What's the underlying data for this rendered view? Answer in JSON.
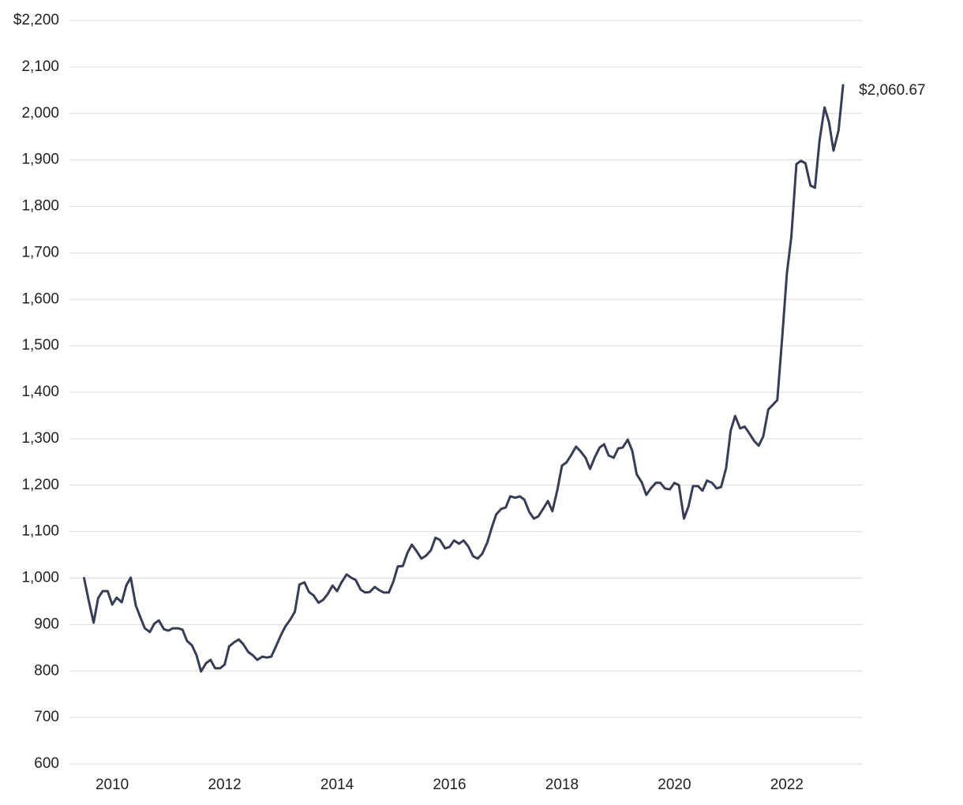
{
  "chart_data": {
    "type": "line",
    "x": [
      2009.5,
      2009.58,
      2009.67,
      2009.75,
      2009.83,
      2009.92,
      2010,
      2010.08,
      2010.17,
      2010.25,
      2010.33,
      2010.42,
      2010.5,
      2010.58,
      2010.67,
      2010.75,
      2010.83,
      2010.92,
      2011,
      2011.08,
      2011.17,
      2011.25,
      2011.33,
      2011.42,
      2011.5,
      2011.58,
      2011.67,
      2011.75,
      2011.83,
      2011.92,
      2012,
      2012.08,
      2012.17,
      2012.25,
      2012.33,
      2012.42,
      2012.5,
      2012.58,
      2012.67,
      2012.75,
      2012.83,
      2012.92,
      2013,
      2013.08,
      2013.17,
      2013.25,
      2013.33,
      2013.42,
      2013.5,
      2013.58,
      2013.67,
      2013.75,
      2013.83,
      2013.92,
      2014,
      2014.08,
      2014.17,
      2014.25,
      2014.33,
      2014.42,
      2014.5,
      2014.58,
      2014.67,
      2014.75,
      2014.83,
      2014.92,
      2015,
      2015.08,
      2015.17,
      2015.25,
      2015.33,
      2015.42,
      2015.5,
      2015.58,
      2015.67,
      2015.75,
      2015.83,
      2015.92,
      2016,
      2016.08,
      2016.17,
      2016.25,
      2016.33,
      2016.42,
      2016.5,
      2016.58,
      2016.67,
      2016.75,
      2016.83,
      2016.92,
      2017,
      2017.08,
      2017.17,
      2017.25,
      2017.33,
      2017.42,
      2017.5,
      2017.58,
      2017.67,
      2017.75,
      2017.83,
      2017.92,
      2018,
      2018.08,
      2018.17,
      2018.25,
      2018.33,
      2018.42,
      2018.5,
      2018.58,
      2018.67,
      2018.75,
      2018.83,
      2018.92,
      2019,
      2019.08,
      2019.17,
      2019.25,
      2019.33,
      2019.42,
      2019.5,
      2019.58,
      2019.67,
      2019.75,
      2019.83,
      2019.92,
      2020,
      2020.08,
      2020.17,
      2020.25,
      2020.33,
      2020.42,
      2020.5,
      2020.58,
      2020.67,
      2020.75,
      2020.83,
      2020.92,
      2021,
      2021.08,
      2021.17,
      2021.25,
      2021.33,
      2021.42,
      2021.5,
      2021.58,
      2021.67,
      2021.75,
      2021.83,
      2021.92,
      2022,
      2022.08,
      2022.17,
      2022.25,
      2022.33,
      2022.42,
      2022.5,
      2022.58,
      2022.67,
      2022.75,
      2022.83,
      2022.92,
      2023
    ],
    "values": [
      1000,
      953,
      904,
      957,
      972,
      972,
      943,
      958,
      948,
      984,
      1001,
      941,
      916,
      892,
      884,
      902,
      909,
      890,
      887,
      892,
      892,
      889,
      865,
      855,
      834,
      799,
      817,
      824,
      806,
      806,
      814,
      853,
      862,
      868,
      858,
      841,
      834,
      824,
      831,
      829,
      831,
      855,
      877,
      896,
      911,
      928,
      986,
      991,
      970,
      963,
      947,
      953,
      965,
      984,
      972,
      991,
      1008,
      1001,
      996,
      975,
      969,
      970,
      981,
      974,
      969,
      969,
      992,
      1025,
      1026,
      1054,
      1072,
      1057,
      1042,
      1048,
      1060,
      1087,
      1082,
      1064,
      1067,
      1081,
      1074,
      1081,
      1069,
      1047,
      1042,
      1052,
      1076,
      1108,
      1137,
      1149,
      1152,
      1176,
      1173,
      1176,
      1169,
      1142,
      1128,
      1133,
      1150,
      1166,
      1144,
      1191,
      1242,
      1249,
      1266,
      1283,
      1273,
      1259,
      1235,
      1259,
      1281,
      1288,
      1264,
      1259,
      1279,
      1281,
      1298,
      1274,
      1223,
      1206,
      1179,
      1193,
      1205,
      1205,
      1193,
      1191,
      1205,
      1200,
      1128,
      1154,
      1198,
      1198,
      1188,
      1210,
      1205,
      1193,
      1196,
      1237,
      1317,
      1349,
      1322,
      1326,
      1312,
      1295,
      1285,
      1305,
      1363,
      1373,
      1383,
      1522,
      1655,
      1735,
      1891,
      1898,
      1893,
      1845,
      1840,
      1940,
      2013,
      1981,
      1920,
      1964,
      2060.67
    ],
    "value_labels": [
      null,
      null,
      null,
      null,
      null,
      null,
      null,
      null,
      null,
      null,
      null,
      null,
      null,
      null,
      null,
      null,
      null,
      null,
      null,
      null,
      null,
      null,
      null,
      null,
      null,
      null,
      null,
      null,
      null,
      null,
      null,
      null,
      null,
      null,
      null,
      null,
      null,
      null,
      null,
      null,
      null,
      null,
      null,
      null,
      null,
      null,
      null,
      null,
      null,
      null,
      null,
      null,
      null,
      null,
      null,
      null,
      null,
      null,
      null,
      null,
      null,
      null,
      null,
      null,
      null,
      null,
      null,
      null,
      null,
      null,
      null,
      null,
      null,
      null,
      null,
      null,
      null,
      null,
      null,
      null,
      null,
      null,
      null,
      null,
      null,
      null,
      null,
      null,
      null,
      null,
      null,
      null,
      null,
      null,
      null,
      null,
      null,
      null,
      null,
      null,
      null,
      null,
      null,
      null,
      null,
      null,
      null,
      null,
      null,
      null,
      null,
      null,
      null,
      null,
      null,
      null,
      null,
      null,
      null,
      null,
      null,
      null,
      null,
      null,
      null,
      null,
      null,
      null,
      null,
      null,
      null,
      null,
      null,
      null,
      null,
      null,
      null,
      null,
      null,
      null,
      null,
      null,
      null,
      null,
      null,
      null,
      null,
      null,
      null,
      null,
      null,
      null,
      null,
      null,
      null,
      null,
      null,
      null,
      null,
      null,
      null,
      null,
      "$2,060.67"
    ],
    "color": "#363d55",
    "xlim": [
      2009.24,
      2023.35
    ],
    "xticks": [
      2010,
      2012,
      2014,
      2016,
      2018,
      2020,
      2022
    ],
    "ylim": [
      600,
      2200
    ],
    "yticks": [
      600,
      700,
      800,
      900,
      {
        "value": 1000,
        "label": "1,000"
      },
      {
        "value": 1100,
        "label": "1,100"
      },
      {
        "value": 1200,
        "label": "1,200"
      },
      {
        "value": 1300,
        "label": "1,300"
      },
      {
        "value": 1400,
        "label": "1,400"
      },
      {
        "value": 1500,
        "label": "1,500"
      },
      {
        "value": 1600,
        "label": "1,600"
      },
      {
        "value": 1700,
        "label": "1,700"
      },
      {
        "value": 1800,
        "label": "1,800"
      },
      {
        "value": 1900,
        "label": "1,900"
      },
      {
        "value": 2000,
        "label": "2,000"
      },
      {
        "value": 2100,
        "label": "2,100"
      },
      {
        "value": 2200,
        "label": "$2,200"
      }
    ],
    "grid": true
  }
}
